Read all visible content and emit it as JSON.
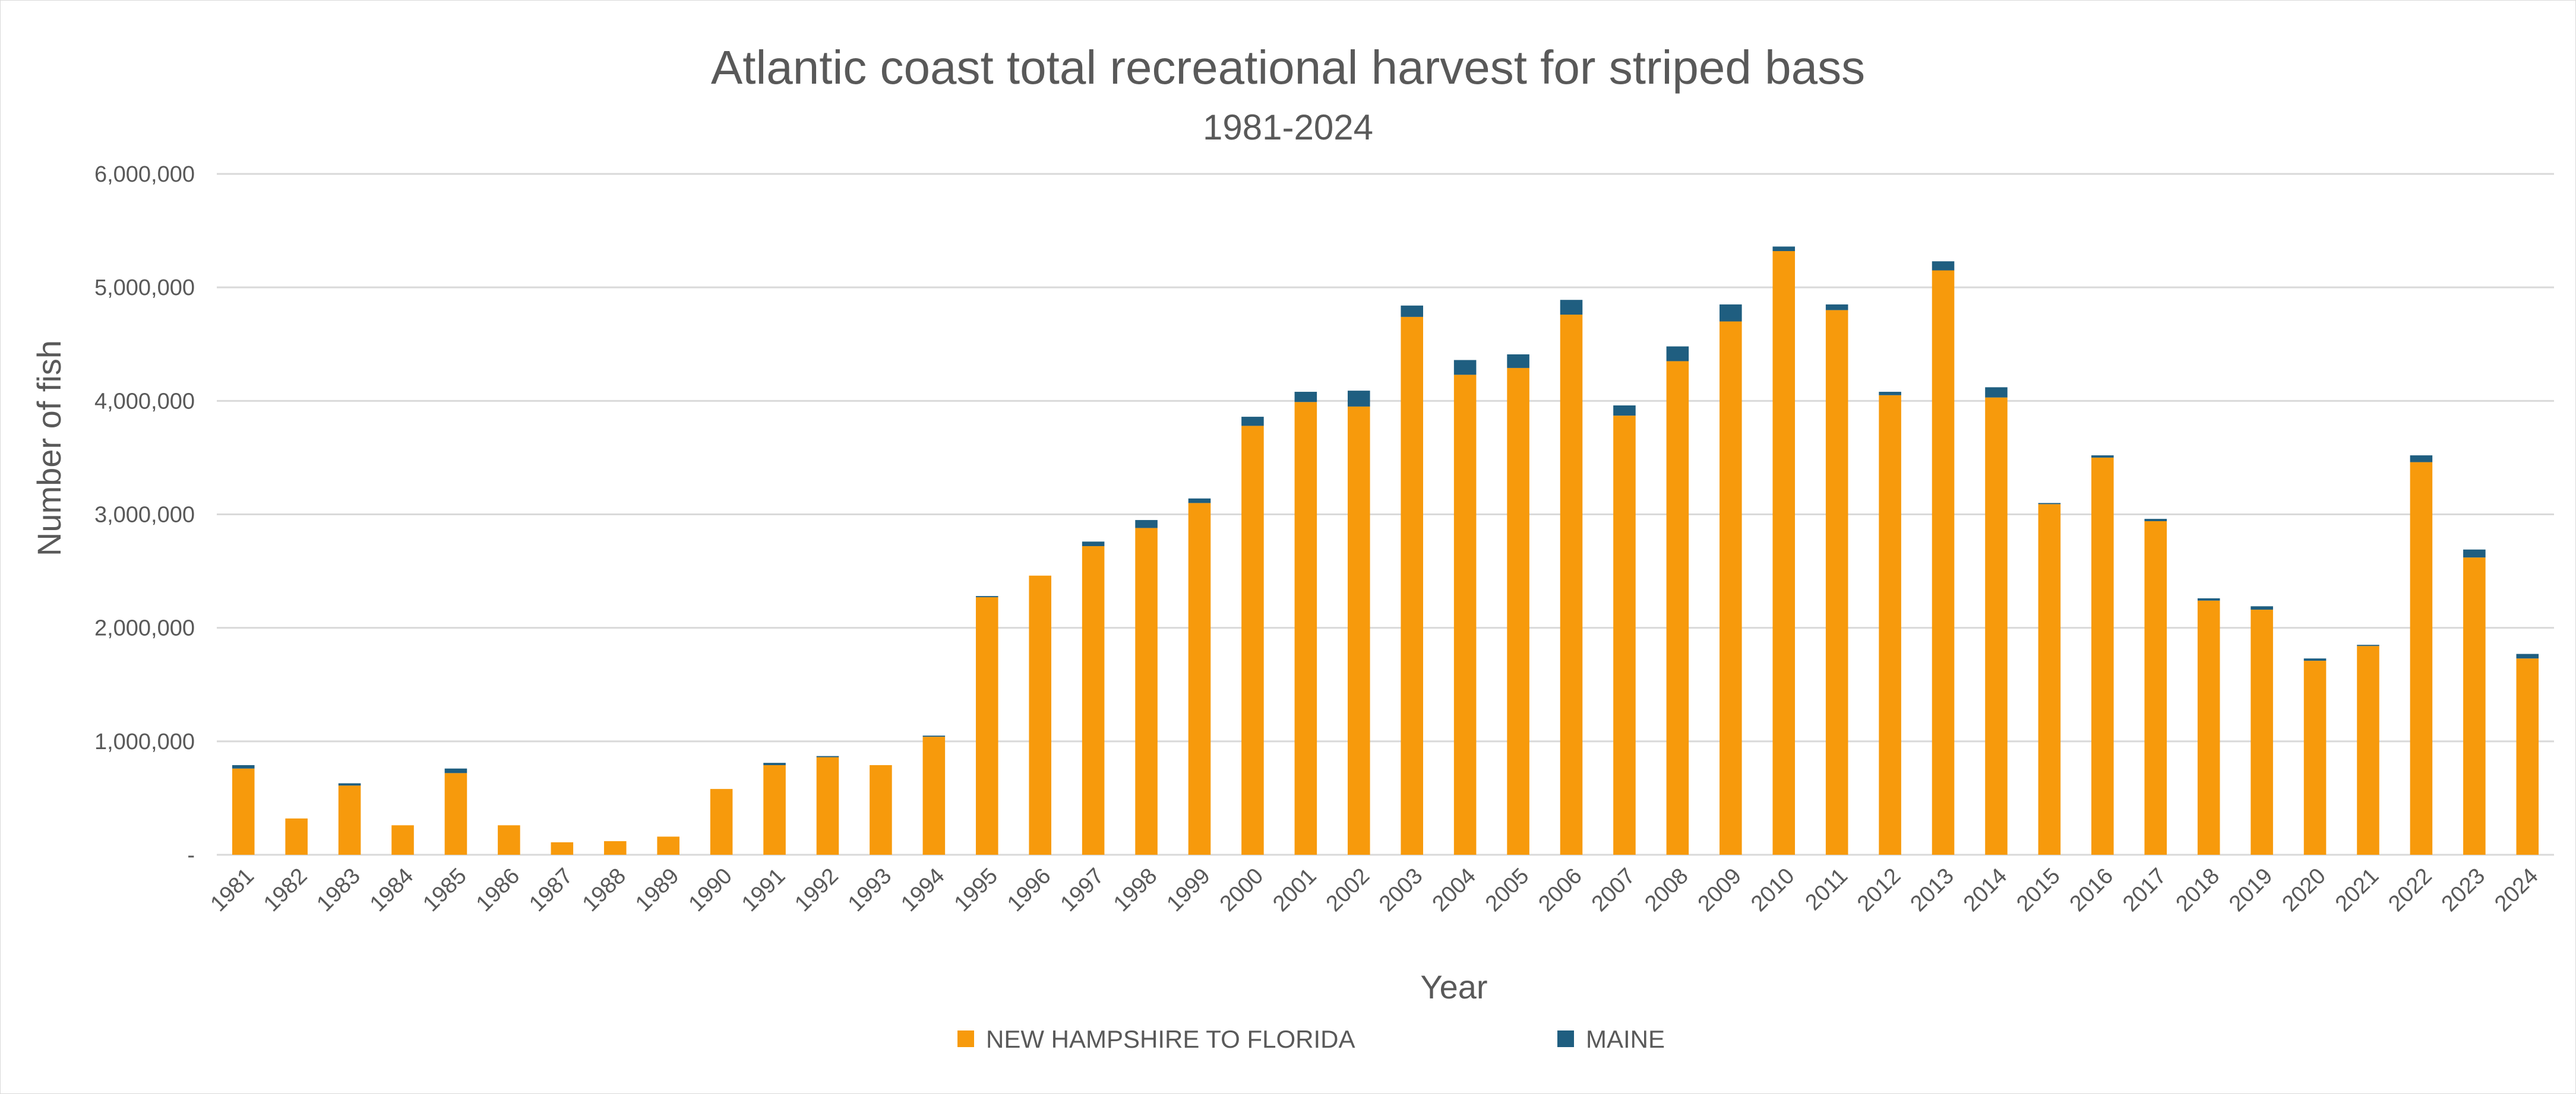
{
  "chart_data": {
    "type": "bar",
    "stacked": true,
    "title": "Atlantic coast total recreational harvest for striped bass",
    "subtitle": "1981-2024",
    "xlabel": "Year",
    "ylabel": "Number of fish",
    "ylim": [
      0,
      6000000
    ],
    "yticks": [
      0,
      1000000,
      2000000,
      3000000,
      4000000,
      5000000,
      6000000
    ],
    "ytick_labels": [
      "-",
      "1,000,000",
      "2,000,000",
      "3,000,000",
      "4,000,000",
      "5,000,000",
      "6,000,000"
    ],
    "grid": true,
    "legend_position": "bottom",
    "categories": [
      "1981",
      "1982",
      "1983",
      "1984",
      "1985",
      "1986",
      "1987",
      "1988",
      "1989",
      "1990",
      "1991",
      "1992",
      "1993",
      "1994",
      "1995",
      "1996",
      "1997",
      "1998",
      "1999",
      "2000",
      "2001",
      "2002",
      "2003",
      "2004",
      "2005",
      "2006",
      "2007",
      "2008",
      "2009",
      "2010",
      "2011",
      "2012",
      "2013",
      "2014",
      "2015",
      "2016",
      "2017",
      "2018",
      "2019",
      "2020",
      "2021",
      "2022",
      "2023",
      "2024"
    ],
    "series": [
      {
        "name": "NEW HAMPSHIRE TO FLORIDA",
        "color": "#F79A0C",
        "values": [
          760000,
          320000,
          610000,
          260000,
          720000,
          260000,
          110000,
          120000,
          160000,
          580000,
          790000,
          860000,
          790000,
          1040000,
          2270000,
          2460000,
          2720000,
          2880000,
          3100000,
          3780000,
          3990000,
          3950000,
          4740000,
          4230000,
          4290000,
          4760000,
          3870000,
          4350000,
          4700000,
          5320000,
          4800000,
          4050000,
          5150000,
          4030000,
          3090000,
          3500000,
          2940000,
          2240000,
          2160000,
          1710000,
          1840000,
          3460000,
          2620000,
          1730000
        ]
      },
      {
        "name": "MAINE",
        "color": "#1F5E80",
        "values": [
          30000,
          0,
          20000,
          0,
          40000,
          0,
          0,
          0,
          0,
          0,
          20000,
          10000,
          0,
          10000,
          10000,
          0,
          40000,
          70000,
          40000,
          80000,
          90000,
          140000,
          100000,
          130000,
          120000,
          130000,
          90000,
          130000,
          150000,
          40000,
          50000,
          30000,
          80000,
          90000,
          10000,
          20000,
          20000,
          20000,
          30000,
          20000,
          10000,
          60000,
          70000,
          40000
        ]
      }
    ]
  }
}
